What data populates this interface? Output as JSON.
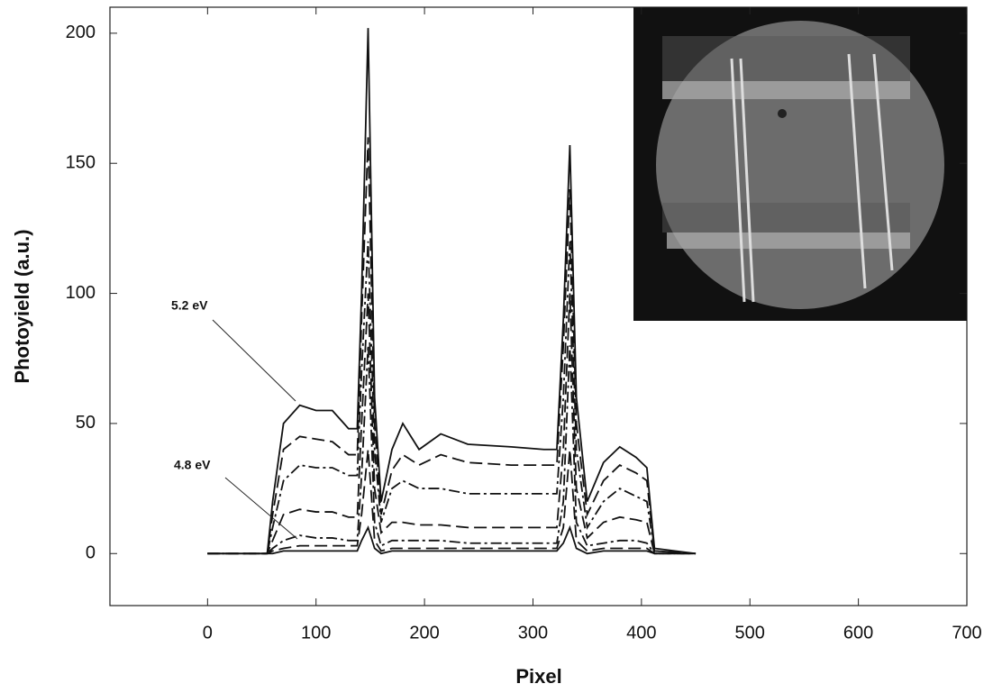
{
  "chart_data": {
    "type": "line",
    "x_label": "Pixel",
    "y_label": "Photoyield (a.u.)",
    "annotations": [
      {
        "text": "5.2 eV"
      },
      {
        "text": "4.8 eV"
      }
    ],
    "xlim": [
      -90,
      700
    ],
    "ylim": [
      -20,
      210
    ],
    "xticks": [
      0,
      100,
      200,
      300,
      400,
      500,
      600,
      700
    ],
    "yticks": [
      0,
      50,
      100,
      150,
      200
    ],
    "grid": false,
    "x": [
      0,
      55,
      60,
      70,
      85,
      100,
      115,
      130,
      138,
      142,
      148,
      154,
      160,
      170,
      180,
      195,
      215,
      240,
      280,
      310,
      322,
      328,
      334,
      340,
      350,
      365,
      380,
      395,
      405,
      412,
      450
    ],
    "series": [
      {
        "color": "#111111",
        "dash": "solid",
        "values": [
          0,
          0,
          20,
          50,
          57,
          55,
          55,
          48,
          48,
          100,
          202,
          60,
          20,
          40,
          50,
          40,
          46,
          42,
          41,
          40,
          40,
          90,
          157,
          60,
          20,
          35,
          41,
          37,
          33,
          2,
          0
        ]
      },
      {
        "color": "#111111",
        "dash": "dashed",
        "values": [
          0,
          0,
          15,
          40,
          45,
          44,
          43,
          38,
          38,
          90,
          160,
          50,
          15,
          32,
          38,
          34,
          38,
          35,
          34,
          34,
          34,
          80,
          140,
          50,
          15,
          28,
          34,
          31,
          28,
          1,
          0
        ]
      },
      {
        "color": "#111111",
        "dash": "dashdot",
        "values": [
          0,
          0,
          10,
          28,
          34,
          33,
          33,
          30,
          30,
          70,
          120,
          40,
          12,
          25,
          28,
          25,
          25,
          23,
          23,
          23,
          23,
          60,
          120,
          40,
          10,
          20,
          25,
          22,
          20,
          1,
          0
        ]
      },
      {
        "color": "#111111",
        "dash": "dashed",
        "values": [
          0,
          0,
          5,
          15,
          17,
          16,
          16,
          14,
          14,
          50,
          100,
          25,
          8,
          12,
          12,
          11,
          11,
          10,
          10,
          10,
          10,
          40,
          100,
          25,
          6,
          12,
          14,
          13,
          12,
          0,
          0
        ]
      },
      {
        "color": "#111111",
        "dash": "dashdot",
        "values": [
          0,
          0,
          2,
          5,
          7,
          6,
          6,
          5,
          5,
          30,
          80,
          12,
          3,
          5,
          5,
          5,
          5,
          4,
          4,
          4,
          4,
          20,
          80,
          12,
          3,
          4,
          5,
          5,
          4,
          0,
          0
        ]
      },
      {
        "color": "#111111",
        "dash": "dashed",
        "values": [
          0,
          0,
          1,
          2,
          3,
          3,
          3,
          3,
          3,
          15,
          40,
          5,
          1,
          2,
          2,
          2,
          2,
          2,
          2,
          2,
          2,
          10,
          40,
          5,
          1,
          2,
          2,
          2,
          2,
          0,
          0
        ]
      },
      {
        "color": "#111111",
        "dash": "solid",
        "values": [
          0,
          0,
          0,
          1,
          1,
          1,
          1,
          1,
          1,
          5,
          10,
          2,
          0,
          1,
          1,
          1,
          1,
          1,
          1,
          1,
          1,
          4,
          10,
          2,
          0,
          1,
          1,
          1,
          1,
          0,
          0
        ]
      }
    ]
  }
}
